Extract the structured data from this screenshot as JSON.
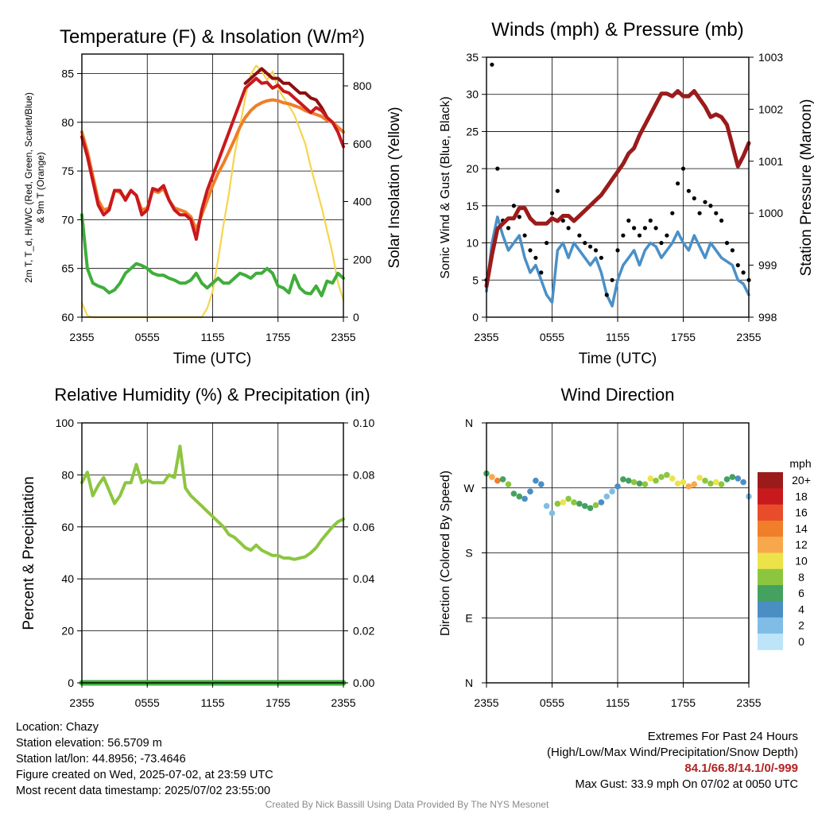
{
  "footer": {
    "location": "Location: Chazy",
    "elevation": "Station elevation: 56.5709 m",
    "latlon": "Station lat/lon: 44.8956; -73.4646",
    "created": "Figure created on Wed, 2025-07-02, at 23:59 UTC",
    "recent": "Most recent data timestamp: 2025/07/02 23:55:00",
    "extremes_title": "Extremes For Past 24 Hours",
    "extremes_subtitle": "(High/Low/Max Wind/Precipitation/Snow Depth)",
    "extremes_values": "84.1/66.8/14.1/0/-999",
    "max_gust": "Max Gust: 33.9 mph On 07/02 at 0050 UTC",
    "credit": "Created By Nick Bassill Using Data Provided By The NYS Mesonet"
  },
  "colors": {
    "temp_red": "#c8191e",
    "heat_index_scarlet": "#8b1010",
    "temp_9m_orange": "#f07e2a",
    "dewpoint_green": "#3fae3b",
    "insolation_yellow": "#f5d54e",
    "wind_blue": "#4a90c8",
    "gust_black": "#000000",
    "pressure_maroon": "#9b1b1b",
    "rh_green": "#8cc63f",
    "precip_green": "#3fae3b"
  },
  "chart_data": [
    {
      "type": "line",
      "title": "Temperature (F) & Insolation (W/m²)",
      "xlabel": "Time (UTC)",
      "ylabel": "2m T, T_d, HI/WC (Red, Green, Scarlet/Blue) & 9m T (Orange)",
      "ylabel_right": "Solar Insolation (Yellow)",
      "xticks": [
        "2355",
        "0555",
        "1155",
        "1755",
        "2355"
      ],
      "ylim": [
        60,
        87
      ],
      "yticks": [
        60,
        65,
        70,
        75,
        80,
        85
      ],
      "ylim_right": [
        0,
        910
      ],
      "yticks_right": [
        0,
        200,
        400,
        600,
        800
      ],
      "x_hours": [
        0,
        0.5,
        1,
        1.5,
        2,
        2.5,
        3,
        3.5,
        4,
        4.5,
        5,
        5.5,
        6,
        6.5,
        7,
        7.5,
        8,
        8.5,
        9,
        9.5,
        10,
        10.5,
        11,
        11.5,
        12,
        12.5,
        13,
        13.5,
        14,
        14.5,
        15,
        15.5,
        16,
        16.5,
        17,
        17.5,
        18,
        18.5,
        19,
        19.5,
        20,
        20.5,
        21,
        21.5,
        22,
        22.5,
        23,
        23.5,
        24
      ],
      "series": [
        {
          "name": "2m T",
          "axis": "left",
          "color_key": "temp_red",
          "values": [
            78.5,
            76.5,
            74,
            71.5,
            70.5,
            71,
            73,
            73,
            72,
            73,
            72.5,
            70.5,
            71,
            73.2,
            73,
            73.5,
            72,
            71,
            70.5,
            70.5,
            70,
            68,
            71,
            73,
            74.5,
            76,
            77.5,
            79,
            80.5,
            82,
            83.5,
            84,
            84.5,
            84,
            84.1,
            83.5,
            83.8,
            83.2,
            83,
            82.5,
            82,
            81.5,
            81,
            81.5,
            81.2,
            80.5,
            80,
            79,
            77.5
          ]
        },
        {
          "name": "Heat Index",
          "axis": "left",
          "color_key": "heat_index_scarlet",
          "values": [
            null,
            null,
            null,
            null,
            null,
            null,
            null,
            null,
            null,
            null,
            null,
            null,
            null,
            null,
            null,
            null,
            null,
            null,
            null,
            null,
            null,
            null,
            null,
            null,
            null,
            null,
            null,
            null,
            null,
            null,
            84,
            84.5,
            85,
            85.5,
            85,
            84.5,
            84.5,
            84,
            84,
            83.5,
            83,
            83,
            82.5,
            82.3,
            81.5,
            80.5,
            null,
            null,
            null
          ]
        },
        {
          "name": "9m T",
          "axis": "left",
          "color_key": "temp_9m_orange",
          "values": [
            79,
            77,
            74.5,
            72,
            71,
            71.2,
            73,
            72.8,
            72.2,
            73,
            72.5,
            71,
            71.2,
            73,
            72.8,
            73.2,
            72,
            71.2,
            71,
            70.8,
            70.3,
            69,
            70.5,
            72,
            73.5,
            74.8,
            75.8,
            77,
            78.2,
            79.5,
            80.5,
            81.2,
            81.7,
            82,
            82.2,
            82.3,
            82.2,
            82,
            81.9,
            81.7,
            81.5,
            81.2,
            81,
            80.8,
            80.6,
            80.2,
            80,
            79.5,
            79
          ]
        },
        {
          "name": "Dewpoint",
          "axis": "left",
          "color_key": "dewpoint_green",
          "values": [
            70.5,
            65,
            63.5,
            63.2,
            63,
            62.5,
            62.8,
            63.5,
            64.5,
            65,
            65.5,
            65.3,
            65,
            64.5,
            64.3,
            64.3,
            64,
            63.8,
            63.5,
            63.5,
            63.8,
            64.5,
            63.5,
            63,
            63.5,
            64,
            63.5,
            63.5,
            64,
            64.5,
            64.3,
            64,
            64.5,
            64.5,
            65,
            64.5,
            63.2,
            63,
            62.5,
            64.3,
            63,
            62.5,
            62.4,
            63.2,
            62.2,
            63.7,
            63.5,
            64.5,
            64
          ]
        },
        {
          "name": "Solar Insolation",
          "axis": "right",
          "color_key": "insolation_yellow",
          "values": [
            50,
            5,
            0,
            0,
            0,
            0,
            0,
            0,
            0,
            0,
            0,
            0,
            0,
            0,
            0,
            0,
            0,
            0,
            0,
            0,
            0,
            0,
            0,
            30,
            90,
            200,
            320,
            430,
            560,
            660,
            760,
            840,
            870,
            850,
            820,
            850,
            790,
            760,
            730,
            700,
            650,
            600,
            520,
            450,
            380,
            300,
            220,
            120,
            60
          ]
        }
      ]
    },
    {
      "type": "scatter",
      "title": "Winds (mph) & Pressure (mb)",
      "xlabel": "Time (UTC)",
      "ylabel": "Sonic Wind & Gust (Blue, Black)",
      "ylabel_right": "Station Pressure (Maroon)",
      "xticks": [
        "2355",
        "0555",
        "1155",
        "1755",
        "2355"
      ],
      "ylim": [
        0,
        35
      ],
      "yticks": [
        0,
        5,
        10,
        15,
        20,
        25,
        30,
        35
      ],
      "ylim_right": [
        998,
        1003
      ],
      "yticks_right": [
        998,
        999,
        1000,
        1001,
        1002,
        1003
      ],
      "x_hours": [
        0,
        0.5,
        1,
        1.5,
        2,
        2.5,
        3,
        3.5,
        4,
        4.5,
        5,
        5.5,
        6,
        6.5,
        7,
        7.5,
        8,
        8.5,
        9,
        9.5,
        10,
        10.5,
        11,
        11.5,
        12,
        12.5,
        13,
        13.5,
        14,
        14.5,
        15,
        15.5,
        16,
        16.5,
        17,
        17.5,
        18,
        18.5,
        19,
        19.5,
        20,
        20.5,
        21,
        21.5,
        22,
        22.5,
        23,
        23.5,
        24
      ],
      "series": [
        {
          "name": "Sonic Wind",
          "axis": "left",
          "color_key": "wind_blue",
          "values": [
            3.5,
            10,
            13.5,
            11,
            9,
            10,
            11,
            8,
            6,
            7,
            5,
            3,
            2,
            9,
            10,
            8,
            10,
            9,
            8,
            7,
            8,
            6,
            3,
            1.5,
            5,
            7,
            8,
            9,
            7,
            9,
            10,
            9.5,
            8,
            9,
            10,
            11.5,
            10,
            9,
            11,
            9.5,
            8,
            10,
            9,
            8,
            7.5,
            7,
            5,
            4.5,
            3
          ]
        },
        {
          "name": "Gust",
          "axis": "left",
          "color_key": "gust_black",
          "values": [
            5,
            34,
            20,
            13,
            12,
            15,
            13.5,
            11,
            9,
            8,
            6,
            10,
            14,
            17,
            13,
            12,
            13,
            11,
            10,
            9.5,
            9,
            8,
            3,
            5,
            9,
            11,
            13,
            12,
            11,
            12,
            13,
            12,
            10,
            11,
            14,
            18,
            20,
            17,
            16,
            14,
            15.5,
            15,
            14,
            13,
            10,
            9,
            7,
            6,
            5
          ]
        },
        {
          "name": "Pressure",
          "axis": "right",
          "color_key": "pressure_maroon",
          "values": [
            998.6,
            999.2,
            999.7,
            999.8,
            999.9,
            999.9,
            1000.1,
            1000.1,
            999.9,
            999.8,
            999.8,
            999.8,
            999.9,
            999.85,
            999.95,
            999.95,
            999.85,
            999.95,
            1000.05,
            1000.15,
            1000.25,
            1000.35,
            1000.5,
            1000.65,
            1000.8,
            1000.95,
            1001.15,
            1001.25,
            1001.5,
            1001.7,
            1001.9,
            1002.1,
            1002.3,
            1002.3,
            1002.25,
            1002.35,
            1002.25,
            1002.25,
            1002.35,
            1002.2,
            1002.05,
            1001.85,
            1001.9,
            1001.85,
            1001.7,
            1001.3,
            1000.9,
            1001.1,
            1001.35
          ]
        }
      ]
    },
    {
      "type": "line",
      "title": "Relative Humidity (%) & Precipitation (in)",
      "xlabel": "",
      "ylabel": "Percent & Precipitation",
      "xticks": [
        "2355",
        "0555",
        "1155",
        "1755",
        "2355"
      ],
      "ylim": [
        0,
        100
      ],
      "yticks": [
        0,
        20,
        40,
        60,
        80,
        100
      ],
      "ylim_right": [
        0,
        0.1
      ],
      "yticks_right": [
        "0.00",
        "0.02",
        "0.04",
        "0.06",
        "0.08",
        "0.10"
      ],
      "x_hours": [
        0,
        0.5,
        1,
        1.5,
        2,
        2.5,
        3,
        3.5,
        4,
        4.5,
        5,
        5.5,
        6,
        6.5,
        7,
        7.5,
        8,
        8.5,
        9,
        9.5,
        10,
        10.5,
        11,
        11.5,
        12,
        12.5,
        13,
        13.5,
        14,
        14.5,
        15,
        15.5,
        16,
        16.5,
        17,
        17.5,
        18,
        18.5,
        19,
        19.5,
        20,
        20.5,
        21,
        21.5,
        22,
        22.5,
        23,
        23.5,
        24
      ],
      "series": [
        {
          "name": "Relative Humidity",
          "axis": "left",
          "color_key": "rh_green",
          "values": [
            77,
            81,
            72,
            76,
            79,
            74,
            69,
            72,
            77,
            77,
            84,
            77,
            78,
            77,
            77,
            77,
            80,
            79,
            91,
            75,
            72,
            70,
            68,
            66,
            64,
            62,
            60,
            57,
            56,
            54,
            52,
            51,
            53,
            51,
            50,
            49,
            49,
            48,
            48,
            47.5,
            48,
            48.5,
            50,
            52,
            55,
            57.5,
            60,
            62,
            63
          ]
        },
        {
          "name": "Precipitation",
          "axis": "right",
          "color_key": "precip_green",
          "values": [
            0,
            0,
            0,
            0,
            0,
            0,
            0,
            0,
            0,
            0,
            0,
            0,
            0,
            0,
            0,
            0,
            0,
            0,
            0,
            0,
            0,
            0,
            0,
            0,
            0,
            0,
            0,
            0,
            0,
            0,
            0,
            0,
            0,
            0,
            0,
            0,
            0,
            0,
            0,
            0,
            0,
            0,
            0,
            0,
            0,
            0,
            0,
            0,
            0
          ]
        }
      ]
    },
    {
      "type": "scatter",
      "title": "Wind Direction",
      "xlabel": "",
      "ylabel": "Direction (Colored By Speed)",
      "xticks": [
        "2355",
        "0555",
        "1155",
        "1755",
        "2355"
      ],
      "yticks": [
        "N",
        "E",
        "S",
        "W",
        "N"
      ],
      "ylim": [
        0,
        360
      ],
      "legend": {
        "title": "mph",
        "labels": [
          "20+",
          "18",
          "16",
          "14",
          "12",
          "10",
          "8",
          "6",
          "4",
          "2",
          "0"
        ],
        "colors": [
          "#9b1b1b",
          "#c8191e",
          "#e84c2b",
          "#f07e2a",
          "#f8a84c",
          "#ece34a",
          "#8cc63f",
          "#44a160",
          "#4a8ec4",
          "#7fbde6",
          "#bde4f8"
        ]
      },
      "x_hours": [
        0,
        0.5,
        1,
        1.5,
        2,
        2.5,
        3,
        3.5,
        4,
        4.5,
        5,
        5.5,
        6,
        6.5,
        7,
        7.5,
        8,
        8.5,
        9,
        9.5,
        10,
        10.5,
        11,
        11.5,
        12,
        12.5,
        13,
        13.5,
        14,
        14.5,
        15,
        15.5,
        16,
        16.5,
        17,
        17.5,
        18,
        18.5,
        19,
        19.5,
        20,
        20.5,
        21,
        21.5,
        22,
        22.5,
        23,
        23.5,
        24
      ],
      "direction": [
        290,
        285,
        280,
        282,
        275,
        262,
        258,
        255,
        265,
        280,
        275,
        245,
        235,
        248,
        250,
        255,
        250,
        248,
        245,
        242,
        246,
        250,
        258,
        265,
        272,
        282,
        280,
        278,
        276,
        275,
        283,
        280,
        285,
        288,
        283,
        276,
        278,
        272,
        275,
        284,
        280,
        276,
        278,
        275,
        282,
        285,
        283,
        278,
        258
      ],
      "speed": [
        6,
        12,
        14,
        6,
        8,
        6,
        7,
        4,
        4,
        5,
        4,
        2,
        2,
        8,
        10,
        8,
        9,
        7,
        6,
        7,
        8,
        4,
        3,
        2,
        4,
        6,
        7,
        8,
        6,
        8,
        10,
        9,
        8,
        9,
        10,
        11,
        10,
        12,
        12,
        10,
        9,
        8,
        10,
        8,
        7,
        7,
        5,
        4,
        3
      ]
    }
  ]
}
